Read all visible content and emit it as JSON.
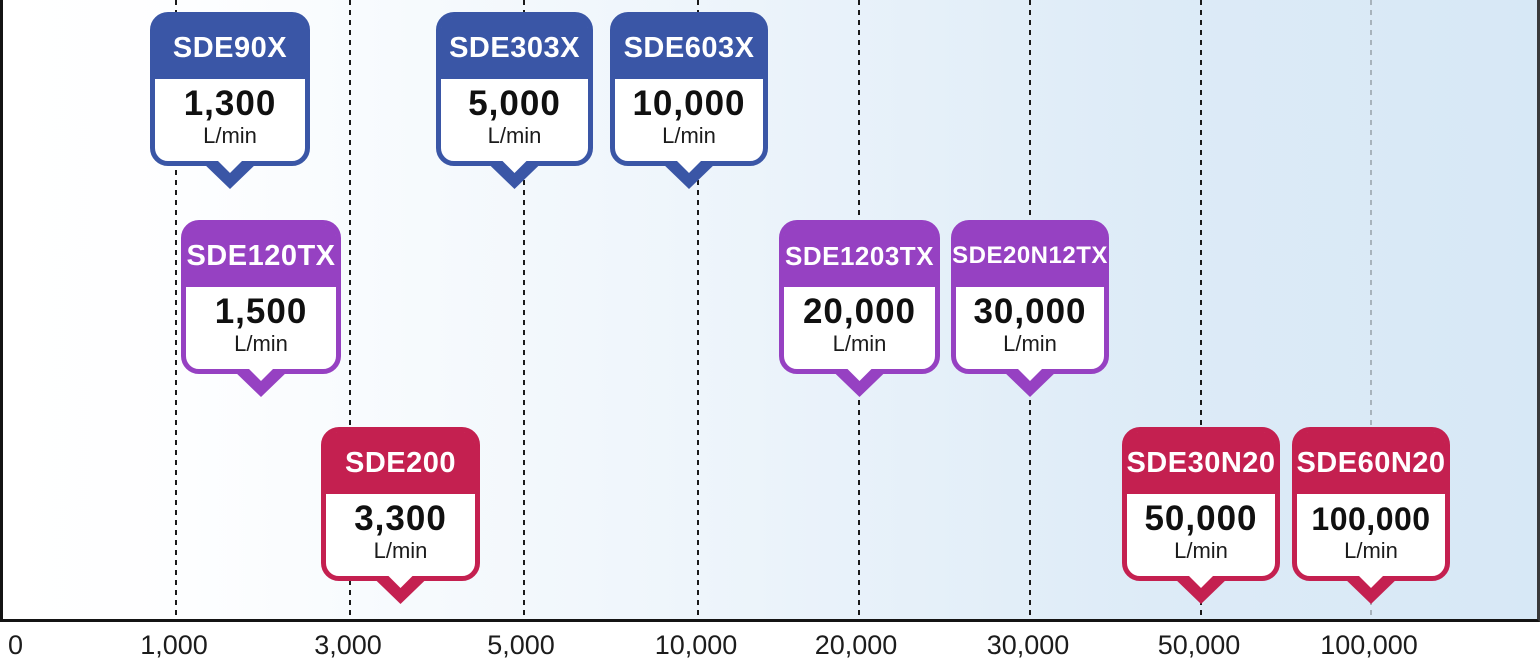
{
  "chart_data": {
    "type": "scatter",
    "description": "Product lineup positioned along a logarithmic-style flow-rate axis",
    "x_axis": {
      "unit": "L/min",
      "scale": "log-like",
      "tick_labels": [
        "0",
        "1,000",
        "3,000",
        "5,000",
        "10,000",
        "20,000",
        "30,000",
        "50,000",
        "100,000"
      ],
      "range": [
        0,
        100000
      ],
      "grid": "dashed-vertical"
    },
    "colors": {
      "blue_series": "#3a56a6",
      "purple_series": "#9641c2",
      "red_series": "#c42050",
      "background_left": "#ffffff",
      "background_right": "#d7e8f6",
      "gridline": "#1a1a1a",
      "gridline_light": "#a8b3bc"
    },
    "products": [
      {
        "model": "SDE90X",
        "value": "1,300",
        "unit": "L/min",
        "flow_lpm": 1300,
        "color": "#3a56a6",
        "row": "top"
      },
      {
        "model": "SDE303X",
        "value": "5,000",
        "unit": "L/min",
        "flow_lpm": 5000,
        "color": "#3a56a6",
        "row": "top"
      },
      {
        "model": "SDE603X",
        "value": "10,000",
        "unit": "L/min",
        "flow_lpm": 10000,
        "color": "#3a56a6",
        "row": "top"
      },
      {
        "model": "SDE120TX",
        "value": "1,500",
        "unit": "L/min",
        "flow_lpm": 1500,
        "color": "#9641c2",
        "row": "middle"
      },
      {
        "model": "SDE1203TX",
        "value": "20,000",
        "unit": "L/min",
        "flow_lpm": 20000,
        "color": "#9641c2",
        "row": "middle"
      },
      {
        "model": "SDE20N12TX",
        "value": "30,000",
        "unit": "L/min",
        "flow_lpm": 30000,
        "color": "#9641c2",
        "row": "middle"
      },
      {
        "model": "SDE200",
        "value": "3,300",
        "unit": "L/min",
        "flow_lpm": 3300,
        "color": "#c42050",
        "row": "bottom"
      },
      {
        "model": "SDE30N20",
        "value": "50,000",
        "unit": "L/min",
        "flow_lpm": 50000,
        "color": "#c42050",
        "row": "bottom"
      },
      {
        "model": "SDE60N20",
        "value": "100,000",
        "unit": "L/min",
        "flow_lpm": 100000,
        "color": "#c42050",
        "row": "bottom"
      }
    ]
  }
}
